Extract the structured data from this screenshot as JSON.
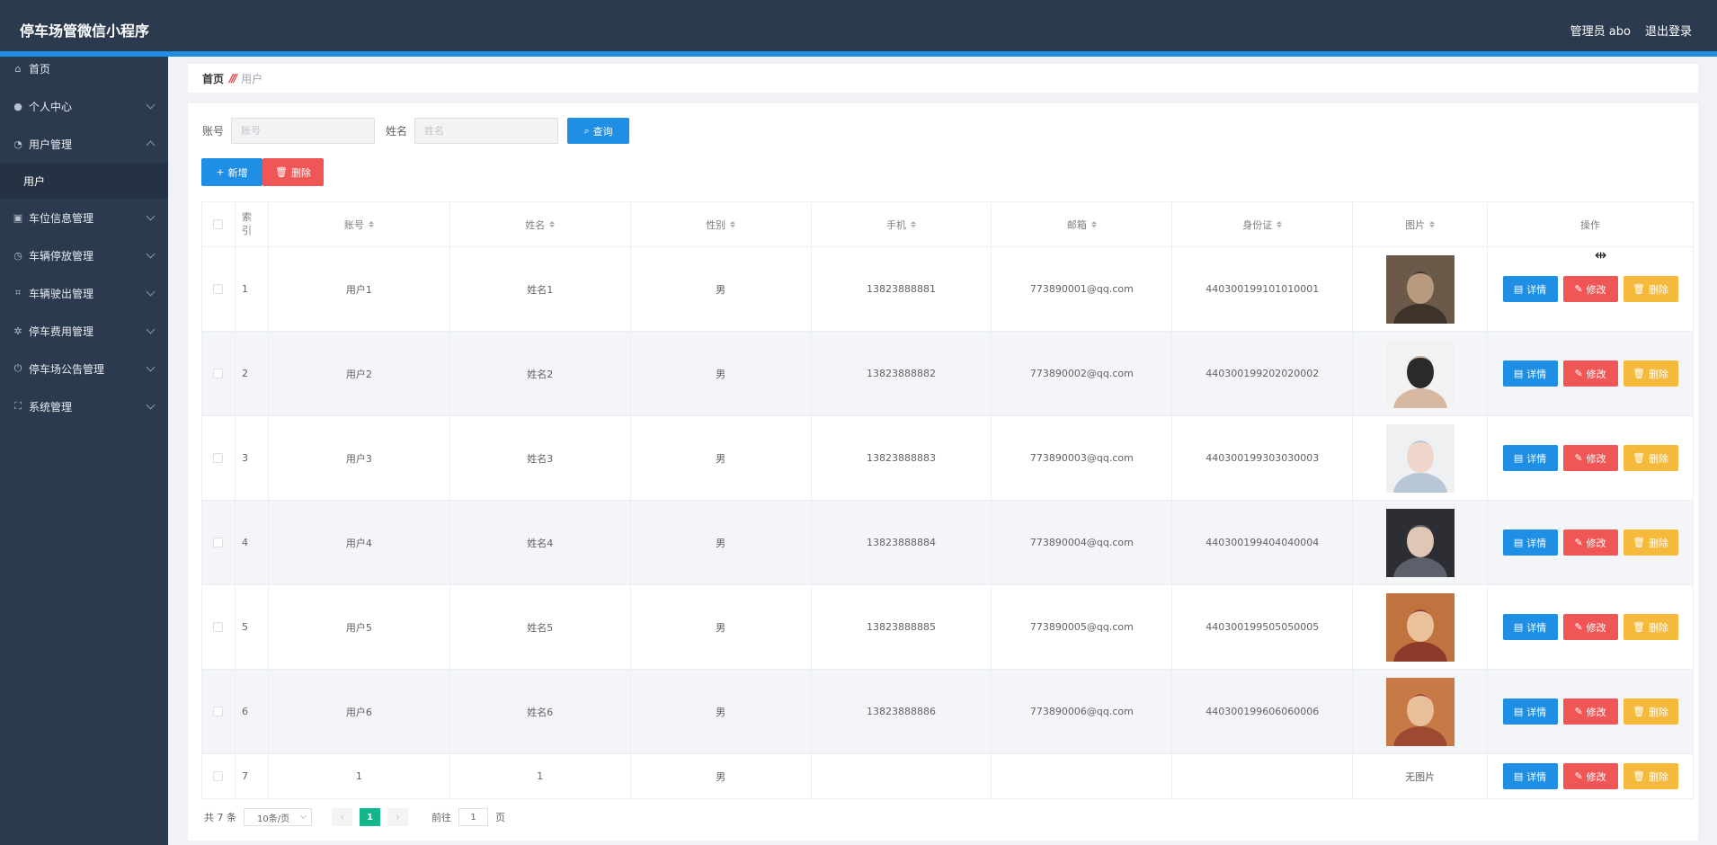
{
  "app": {
    "title": "停车场管微信小程序"
  },
  "topbar": {
    "user": "管理员 abo",
    "logout": "退出登录"
  },
  "sidebar": {
    "items": [
      {
        "label": "首页",
        "icon": "home-icon",
        "glyph": "⌂",
        "chevron": false
      },
      {
        "label": "个人中心",
        "icon": "user-icon",
        "glyph": "●",
        "chevron": true
      },
      {
        "label": "用户管理",
        "icon": "dashboard-icon",
        "glyph": "◔",
        "chevron": true,
        "open": true
      },
      {
        "label": "车位信息管理",
        "icon": "document-icon",
        "glyph": "▣",
        "chevron": true
      },
      {
        "label": "车辆停放管理",
        "icon": "clock-icon",
        "glyph": "◷",
        "chevron": true
      },
      {
        "label": "车辆驶出管理",
        "icon": "crop-icon",
        "glyph": "⌗",
        "chevron": true
      },
      {
        "label": "停车费用管理",
        "icon": "settings-icon",
        "glyph": "✲",
        "chevron": true
      },
      {
        "label": "停车场公告管理",
        "icon": "power-icon",
        "glyph": "⏻",
        "chevron": true
      },
      {
        "label": "系统管理",
        "icon": "fullscreen-icon",
        "glyph": "⛶",
        "chevron": true
      }
    ],
    "submenu": {
      "label": "用户"
    }
  },
  "breadcrumb": {
    "home": "首页",
    "separator": "///",
    "current": "用户"
  },
  "search": {
    "account_label": "账号",
    "account_placeholder": "账号",
    "name_label": "姓名",
    "name_placeholder": "姓名",
    "query_button": "查询"
  },
  "actions": {
    "add": "新增",
    "delete": "删除"
  },
  "table": {
    "headers": [
      "索引",
      "账号",
      "姓名",
      "性别",
      "手机",
      "邮箱",
      "身份证",
      "图片",
      "操作"
    ],
    "rows": [
      {
        "index": "1",
        "account": "用户1",
        "name": "姓名1",
        "gender": "男",
        "phone": "13823888881",
        "email": "773890001@qq.com",
        "idcard": "440300199101010001",
        "photo": "avatar-1"
      },
      {
        "index": "2",
        "account": "用户2",
        "name": "姓名2",
        "gender": "男",
        "phone": "13823888882",
        "email": "773890002@qq.com",
        "idcard": "440300199202020002",
        "photo": "avatar-2"
      },
      {
        "index": "3",
        "account": "用户3",
        "name": "姓名3",
        "gender": "男",
        "phone": "13823888883",
        "email": "773890003@qq.com",
        "idcard": "440300199303030003",
        "photo": "avatar-3"
      },
      {
        "index": "4",
        "account": "用户4",
        "name": "姓名4",
        "gender": "男",
        "phone": "13823888884",
        "email": "773890004@qq.com",
        "idcard": "440300199404040004",
        "photo": "avatar-4"
      },
      {
        "index": "5",
        "account": "用户5",
        "name": "姓名5",
        "gender": "男",
        "phone": "13823888885",
        "email": "773890005@qq.com",
        "idcard": "440300199505050005",
        "photo": "avatar-5"
      },
      {
        "index": "6",
        "account": "用户6",
        "name": "姓名6",
        "gender": "男",
        "phone": "13823888886",
        "email": "773890006@qq.com",
        "idcard": "440300199606060006",
        "photo": "avatar-6"
      },
      {
        "index": "7",
        "account": "1",
        "name": "1",
        "gender": "男",
        "phone": "",
        "email": "",
        "idcard": "",
        "photo_text": "无图片"
      }
    ],
    "ops": {
      "detail": "详情",
      "edit": "修改",
      "delete": "删除"
    }
  },
  "pagination": {
    "total": "共 7 条",
    "page_size": "10条/页",
    "current_page": "1",
    "goto_label": "前往",
    "goto_value": "1",
    "page_unit": "页"
  },
  "colors": {
    "topbar": "#2b3a4e",
    "accent": "#1f8ee5",
    "primary": "#1f8ee5",
    "danger": "#f05656",
    "warning": "#f5b93b",
    "active_page": "#13b78b"
  }
}
